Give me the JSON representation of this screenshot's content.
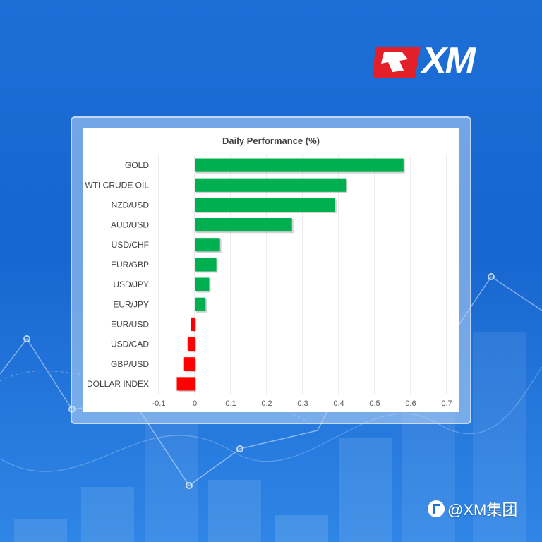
{
  "brand": {
    "logo_text": "XM",
    "accent_red": "#e3202a"
  },
  "watermark": {
    "text": "@XM集团",
    "icon": "social-circle-icon"
  },
  "chart_data": {
    "type": "bar",
    "orientation": "horizontal",
    "title": "Daily Performance (%)",
    "xlabel": "",
    "ylabel": "",
    "xlim": [
      -0.1,
      0.7
    ],
    "xticks": [
      "-0.1",
      "0",
      "0.1",
      "0.2",
      "0.3",
      "0.4",
      "0.5",
      "0.6",
      "0.7"
    ],
    "grid": "vertical",
    "positive_color": "#00b050",
    "negative_color": "#ff0000",
    "categories": [
      "GOLD",
      "WTI CRUDE OIL",
      "NZD/USD",
      "AUD/USD",
      "USD/CHF",
      "EUR/GBP",
      "USD/JPY",
      "EUR/JPY",
      "EUR/USD",
      "USD/CAD",
      "GBP/USD",
      "DOLLAR INDEX"
    ],
    "values": [
      0.58,
      0.42,
      0.39,
      0.27,
      0.07,
      0.06,
      0.04,
      0.03,
      -0.01,
      -0.02,
      -0.03,
      -0.05
    ]
  }
}
